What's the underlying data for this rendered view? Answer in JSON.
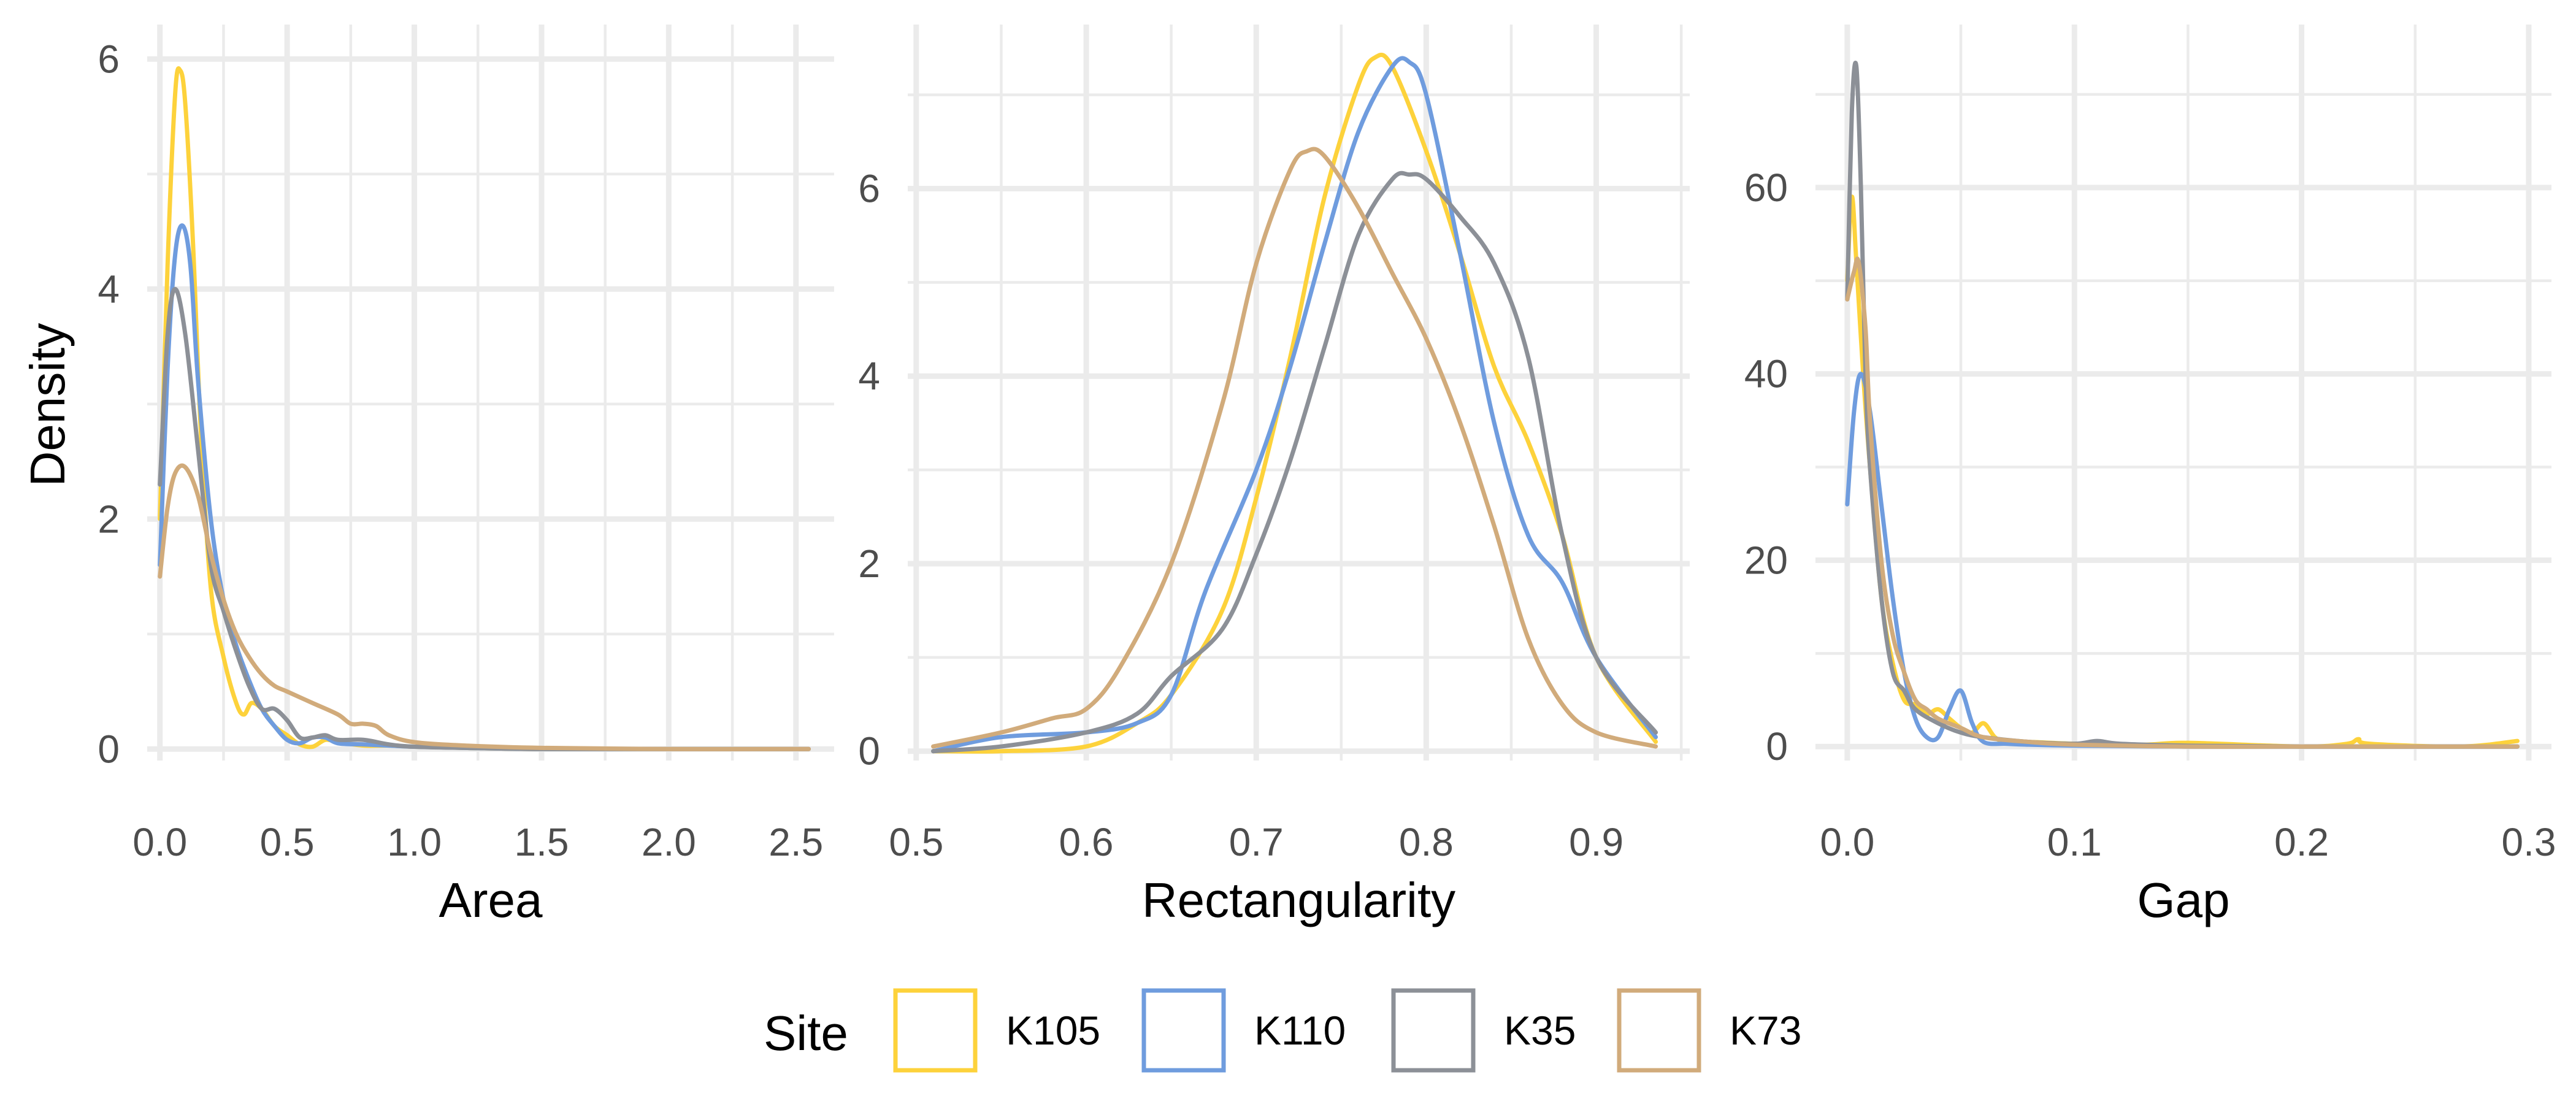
{
  "ylabel": "Density",
  "colors": {
    "K105": "#fdd23b",
    "K110": "#6f9cde",
    "K35": "#8c9097",
    "K73": "#d1ab7b"
  },
  "legend": {
    "title": "Site",
    "items": [
      {
        "label": "K105",
        "color": "#fdd23b"
      },
      {
        "label": "K110",
        "color": "#6f9cde"
      },
      {
        "label": "K35",
        "color": "#8c9097"
      },
      {
        "label": "K73",
        "color": "#d1ab7b"
      }
    ]
  },
  "chart_data": [
    {
      "type": "line",
      "title": "",
      "xlabel": "Area",
      "ylabel": "Density",
      "xlim": [
        -0.05,
        2.65
      ],
      "ylim": [
        -0.1,
        6.3
      ],
      "xticks": [
        0.0,
        0.5,
        1.0,
        1.5,
        2.0,
        2.5
      ],
      "xtick_labels": [
        "0.0",
        "0.5",
        "1.0",
        "1.5",
        "2.0",
        "2.5"
      ],
      "yticks": [
        0,
        2,
        4,
        6
      ],
      "ytick_labels": [
        "0",
        "2",
        "4",
        "6"
      ],
      "grid": true,
      "series": [
        {
          "name": "K105",
          "x": [
            0.0,
            0.03,
            0.06,
            0.08,
            0.1,
            0.13,
            0.16,
            0.2,
            0.25,
            0.3,
            0.33,
            0.36,
            0.4,
            0.45,
            0.5,
            0.55,
            0.6,
            0.65,
            0.7,
            0.8,
            0.9,
            1.0,
            1.2,
            1.5,
            2.0,
            2.55
          ],
          "y": [
            2.0,
            4.2,
            5.7,
            5.9,
            5.6,
            4.4,
            2.8,
            1.4,
            0.8,
            0.4,
            0.3,
            0.4,
            0.35,
            0.2,
            0.12,
            0.04,
            0.02,
            0.08,
            0.06,
            0.03,
            0.03,
            0.02,
            0.01,
            0.0,
            0.0,
            0.0
          ]
        },
        {
          "name": "K110",
          "x": [
            0.0,
            0.03,
            0.06,
            0.09,
            0.12,
            0.15,
            0.2,
            0.25,
            0.3,
            0.35,
            0.4,
            0.45,
            0.5,
            0.55,
            0.6,
            0.65,
            0.7,
            0.8,
            0.9,
            1.0,
            1.2,
            1.5,
            2.0,
            2.55
          ],
          "y": [
            1.6,
            3.3,
            4.3,
            4.55,
            4.2,
            3.2,
            2.0,
            1.3,
            0.9,
            0.6,
            0.35,
            0.2,
            0.08,
            0.05,
            0.1,
            0.1,
            0.05,
            0.04,
            0.03,
            0.02,
            0.01,
            0.0,
            0.0,
            0.0
          ]
        },
        {
          "name": "K35",
          "x": [
            0.0,
            0.03,
            0.06,
            0.1,
            0.15,
            0.2,
            0.25,
            0.3,
            0.35,
            0.4,
            0.45,
            0.5,
            0.55,
            0.6,
            0.65,
            0.7,
            0.8,
            0.9,
            1.0,
            1.2,
            1.5,
            2.0,
            2.55
          ],
          "y": [
            2.3,
            3.6,
            4.0,
            3.6,
            2.6,
            1.6,
            1.2,
            0.85,
            0.55,
            0.35,
            0.35,
            0.25,
            0.1,
            0.1,
            0.12,
            0.08,
            0.08,
            0.04,
            0.02,
            0.01,
            0.0,
            0.0,
            0.0
          ]
        },
        {
          "name": "K73",
          "x": [
            0.0,
            0.03,
            0.06,
            0.1,
            0.15,
            0.2,
            0.25,
            0.3,
            0.35,
            0.4,
            0.45,
            0.5,
            0.6,
            0.7,
            0.75,
            0.8,
            0.85,
            0.9,
            1.0,
            1.2,
            1.5,
            2.0,
            2.55
          ],
          "y": [
            1.5,
            2.1,
            2.4,
            2.45,
            2.2,
            1.7,
            1.3,
            1.0,
            0.8,
            0.65,
            0.55,
            0.5,
            0.4,
            0.3,
            0.22,
            0.22,
            0.2,
            0.12,
            0.06,
            0.03,
            0.01,
            0.0,
            0.0
          ]
        }
      ]
    },
    {
      "type": "line",
      "title": "",
      "xlabel": "Rectangularity",
      "ylabel": "",
      "xlim": [
        0.495,
        0.955
      ],
      "ylim": [
        -0.1,
        7.75
      ],
      "xticks": [
        0.5,
        0.6,
        0.7,
        0.8,
        0.9
      ],
      "xtick_labels": [
        "0.5",
        "0.6",
        "0.7",
        "0.8",
        "0.9"
      ],
      "yticks": [
        0,
        2,
        4,
        6
      ],
      "ytick_labels": [
        "0",
        "2",
        "4",
        "6"
      ],
      "grid": true,
      "series": [
        {
          "name": "K105",
          "x": [
            0.51,
            0.55,
            0.6,
            0.63,
            0.65,
            0.68,
            0.7,
            0.72,
            0.74,
            0.76,
            0.77,
            0.78,
            0.8,
            0.82,
            0.84,
            0.86,
            0.88,
            0.9,
            0.935
          ],
          "y": [
            0.0,
            0.0,
            0.05,
            0.3,
            0.6,
            1.5,
            2.7,
            4.2,
            5.9,
            7.1,
            7.4,
            7.3,
            6.4,
            5.3,
            4.1,
            3.3,
            2.3,
            1.0,
            0.1
          ]
        },
        {
          "name": "K110",
          "x": [
            0.51,
            0.55,
            0.6,
            0.63,
            0.65,
            0.67,
            0.7,
            0.72,
            0.74,
            0.76,
            0.78,
            0.79,
            0.8,
            0.82,
            0.84,
            0.86,
            0.88,
            0.9,
            0.935
          ],
          "y": [
            0.0,
            0.15,
            0.2,
            0.3,
            0.6,
            1.7,
            3.0,
            4.1,
            5.4,
            6.6,
            7.3,
            7.35,
            7.0,
            5.3,
            3.5,
            2.3,
            1.8,
            1.0,
            0.15
          ]
        },
        {
          "name": "K35",
          "x": [
            0.51,
            0.55,
            0.6,
            0.63,
            0.65,
            0.68,
            0.7,
            0.72,
            0.74,
            0.76,
            0.78,
            0.79,
            0.8,
            0.82,
            0.84,
            0.86,
            0.88,
            0.9,
            0.935
          ],
          "y": [
            0.0,
            0.05,
            0.2,
            0.4,
            0.8,
            1.3,
            2.1,
            3.1,
            4.3,
            5.5,
            6.1,
            6.15,
            6.1,
            5.7,
            5.2,
            4.2,
            2.3,
            1.0,
            0.2
          ]
        },
        {
          "name": "K73",
          "x": [
            0.51,
            0.55,
            0.58,
            0.6,
            0.62,
            0.65,
            0.68,
            0.7,
            0.72,
            0.73,
            0.74,
            0.76,
            0.78,
            0.8,
            0.82,
            0.84,
            0.86,
            0.88,
            0.9,
            0.935
          ],
          "y": [
            0.05,
            0.2,
            0.35,
            0.45,
            0.9,
            2.0,
            3.7,
            5.2,
            6.2,
            6.4,
            6.35,
            5.8,
            5.1,
            4.4,
            3.5,
            2.4,
            1.2,
            0.5,
            0.2,
            0.05
          ]
        }
      ]
    },
    {
      "type": "line",
      "title": "",
      "xlabel": "Gap",
      "ylabel": "",
      "xlim": [
        -0.014,
        0.31
      ],
      "ylim": [
        -1.5,
        77.5
      ],
      "xticks": [
        0.0,
        0.1,
        0.2,
        0.3
      ],
      "xtick_labels": [
        "0.0",
        "0.1",
        "0.2",
        "0.3"
      ],
      "yticks": [
        0,
        20,
        40,
        60
      ],
      "ytick_labels": [
        "0",
        "20",
        "40",
        "60"
      ],
      "grid": true,
      "series": [
        {
          "name": "K105",
          "x": [
            0.0,
            0.002,
            0.004,
            0.007,
            0.01,
            0.015,
            0.02,
            0.025,
            0.03,
            0.035,
            0.04,
            0.045,
            0.05,
            0.055,
            0.06,
            0.065,
            0.07,
            0.08,
            0.1,
            0.13,
            0.15,
            0.2,
            0.22,
            0.225,
            0.23,
            0.27,
            0.295
          ],
          "y": [
            50.0,
            59.0,
            52.0,
            40.0,
            30.0,
            16.0,
            9.0,
            5.0,
            4.5,
            3.5,
            4.0,
            3.0,
            2.0,
            1.5,
            2.5,
            1.0,
            0.5,
            0.5,
            0.3,
            0.2,
            0.4,
            0.0,
            0.3,
            0.8,
            0.3,
            0.0,
            0.6
          ]
        },
        {
          "name": "K110",
          "x": [
            0.0,
            0.003,
            0.006,
            0.01,
            0.015,
            0.02,
            0.025,
            0.03,
            0.035,
            0.04,
            0.045,
            0.05,
            0.055,
            0.06,
            0.07,
            0.08,
            0.1,
            0.15,
            0.2,
            0.295
          ],
          "y": [
            26.0,
            36.0,
            40.0,
            36.0,
            26.0,
            16.0,
            8.0,
            3.0,
            1.0,
            1.0,
            4.0,
            6.0,
            2.5,
            0.5,
            0.3,
            0.2,
            0.1,
            0.0,
            0.0,
            0.0
          ]
        },
        {
          "name": "K35",
          "x": [
            0.0,
            0.002,
            0.004,
            0.006,
            0.008,
            0.01,
            0.015,
            0.02,
            0.025,
            0.03,
            0.04,
            0.05,
            0.06,
            0.08,
            0.1,
            0.11,
            0.12,
            0.15,
            0.2,
            0.295
          ],
          "y": [
            48.0,
            68.0,
            73.0,
            60.0,
            40.0,
            30.0,
            16.0,
            8.0,
            6.0,
            4.0,
            2.5,
            1.5,
            1.0,
            0.5,
            0.3,
            0.6,
            0.3,
            0.1,
            0.0,
            0.0
          ]
        },
        {
          "name": "K73",
          "x": [
            0.0,
            0.003,
            0.005,
            0.008,
            0.01,
            0.015,
            0.02,
            0.025,
            0.03,
            0.035,
            0.04,
            0.05,
            0.06,
            0.08,
            0.1,
            0.15,
            0.2,
            0.295
          ],
          "y": [
            48.0,
            51.0,
            52.0,
            45.0,
            35.0,
            20.0,
            12.0,
            8.0,
            5.0,
            4.0,
            3.0,
            2.0,
            1.0,
            0.5,
            0.2,
            0.0,
            0.0,
            0.0
          ]
        }
      ]
    }
  ]
}
